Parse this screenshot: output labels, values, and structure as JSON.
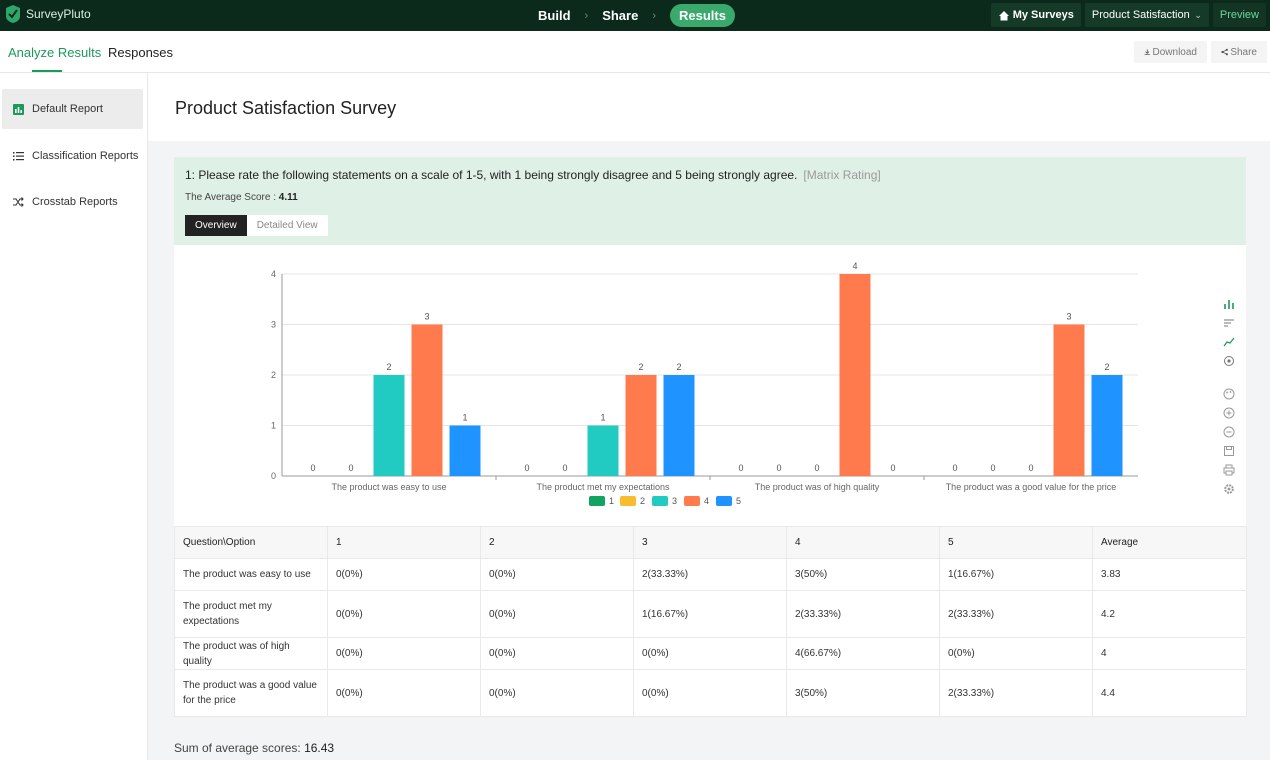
{
  "app": {
    "name": "SurveyPluto",
    "brand_color": "#1b9a5a"
  },
  "steps": [
    {
      "label": "Build",
      "active": false
    },
    {
      "label": "Share",
      "active": false
    },
    {
      "label": "Results",
      "active": true
    }
  ],
  "topbar": {
    "my_surveys": "My Surveys",
    "survey_select": "Product Satisfaction Survey",
    "preview": "Preview"
  },
  "subnav": {
    "tabs": [
      {
        "label": "Analyze Results",
        "active": true
      },
      {
        "label": "Responses",
        "active": false
      }
    ],
    "download": "Download",
    "share": "Share"
  },
  "sidebar": {
    "items": [
      {
        "label": "Default Report",
        "icon": "bar-chart-icon",
        "active": true
      },
      {
        "label": "Classification Reports",
        "icon": "list-icon",
        "active": false
      },
      {
        "label": "Crosstab Reports",
        "icon": "shuffle-icon",
        "active": false
      }
    ]
  },
  "page": {
    "title": "Product Satisfaction Survey"
  },
  "question": {
    "text": "1: Please rate the following statements on a scale of 1-5, with 1 being strongly disagree and 5 being strongly agree.",
    "type": "[Matrix Rating]",
    "average_label": "The Average Score : ",
    "average_value": "4.11",
    "view_tabs": [
      {
        "label": "Overview",
        "active": true
      },
      {
        "label": "Detailed View",
        "active": false
      }
    ]
  },
  "chart_data": {
    "type": "bar",
    "categories": [
      "The product was easy to use",
      "The product met my expectations",
      "The product was of high quality",
      "The product was a good value for the price"
    ],
    "series": [
      {
        "name": "1",
        "values": [
          0,
          0,
          0,
          0
        ],
        "color": "#10a460"
      },
      {
        "name": "2",
        "values": [
          0,
          0,
          0,
          0
        ],
        "color": "#f7bd2f"
      },
      {
        "name": "3",
        "values": [
          2,
          1,
          0,
          0
        ],
        "color": "#22cbc2"
      },
      {
        "name": "4",
        "values": [
          3,
          2,
          4,
          3
        ],
        "color": "#ff7a4c"
      },
      {
        "name": "5",
        "values": [
          1,
          2,
          0,
          2
        ],
        "color": "#1f93ff"
      }
    ],
    "y_ticks": [
      "0",
      "1",
      "2",
      "3",
      "4"
    ],
    "ylim": [
      0,
      4
    ],
    "grid": true,
    "legend": "bottom-center",
    "data_labels": true
  },
  "chart_tools": [
    "bar-chart-icon",
    "sort-icon",
    "line-chart-icon",
    "settings-icon",
    "palette-icon",
    "zoom-in-icon",
    "zoom-out-icon",
    "save-icon",
    "print-icon",
    "gear-icon"
  ],
  "table": {
    "headers": [
      "Question\\Option",
      "1",
      "2",
      "3",
      "4",
      "5",
      "Average"
    ],
    "rows": [
      [
        "The product was easy to use",
        "0(0%)",
        "0(0%)",
        "2(33.33%)",
        "3(50%)",
        "1(16.67%)",
        "3.83"
      ],
      [
        "The product met my expectations",
        "0(0%)",
        "0(0%)",
        "1(16.67%)",
        "2(33.33%)",
        "2(33.33%)",
        "4.2"
      ],
      [
        "The product was of high quality",
        "0(0%)",
        "0(0%)",
        "0(0%)",
        "4(66.67%)",
        "0(0%)",
        "4"
      ],
      [
        "The product was a good value for the price",
        "0(0%)",
        "0(0%)",
        "0(0%)",
        "3(50%)",
        "2(33.33%)",
        "4.4"
      ]
    ]
  },
  "summary": {
    "label": "Sum of average scores: ",
    "value": "16.43"
  }
}
